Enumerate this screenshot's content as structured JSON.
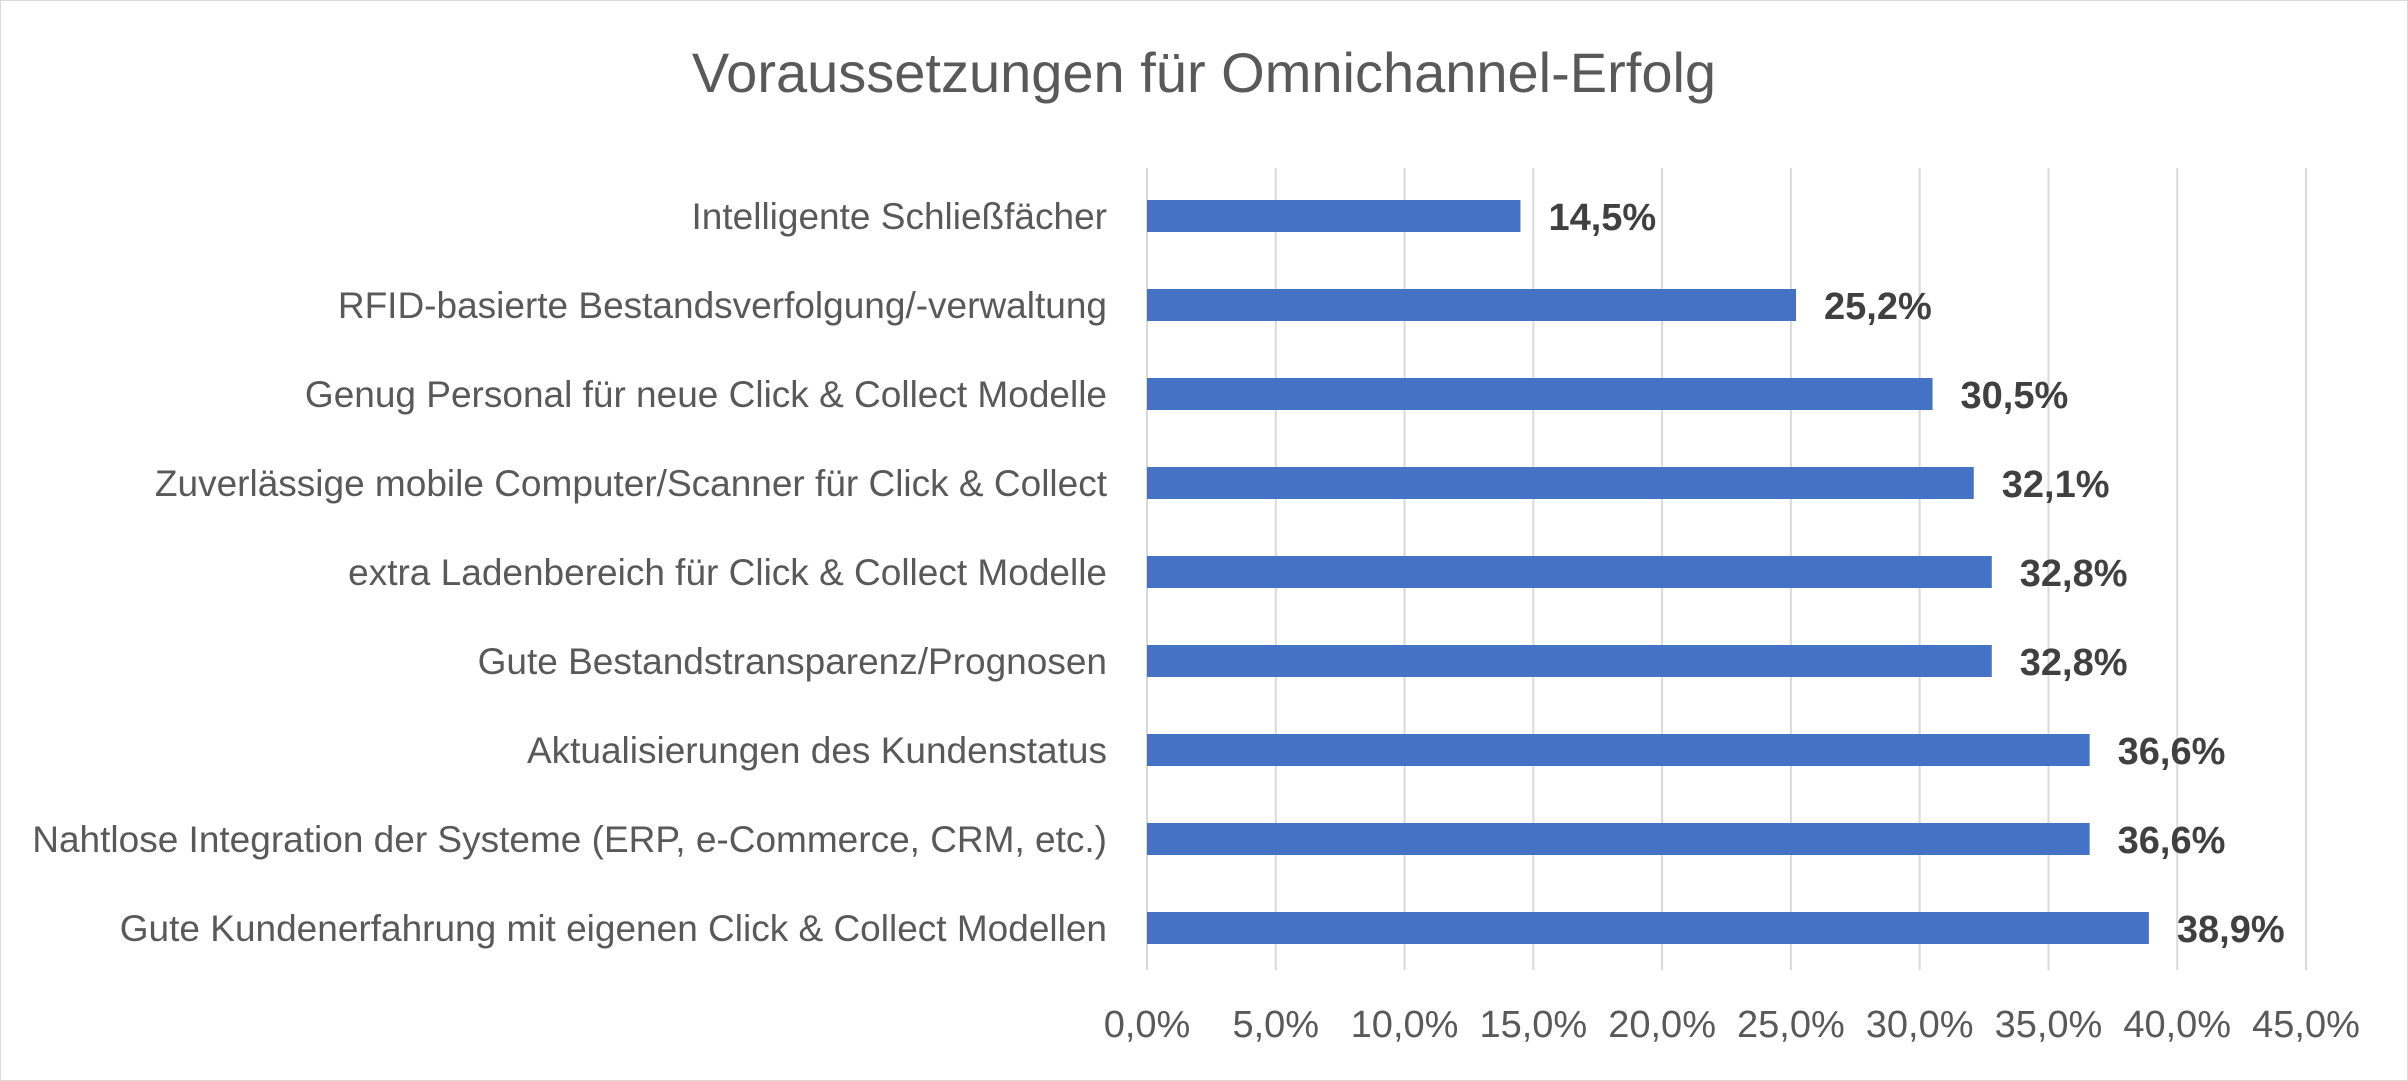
{
  "chart_data": {
    "type": "bar",
    "orientation": "horizontal",
    "title": "Voraussetzungen für Omnichannel-Erfolg",
    "categories": [
      "Intelligente Schließfächer",
      "RFID-basierte Bestandsverfolgung/-verwaltung",
      "Genug Personal für neue Click & Collect Modelle",
      "Zuverlässige mobile Computer/Scanner für Click & Collect",
      "extra Ladenbereich für Click & Collect Modelle",
      "Gute Bestandstransparenz/Prognosen",
      "Aktualisierungen des Kundenstatus",
      "Nahtlose Integration der Systeme (ERP, e-Commerce, CRM, etc.)",
      "Gute Kundenerfahrung mit eigenen Click & Collect Modellen"
    ],
    "values": [
      14.5,
      25.2,
      30.5,
      32.1,
      32.8,
      32.8,
      36.6,
      36.6,
      38.9
    ],
    "data_labels": [
      "14,5%",
      "25,2%",
      "30,5%",
      "32,1%",
      "32,8%",
      "32,8%",
      "36,6%",
      "36,6%",
      "38,9%"
    ],
    "xlim": [
      0,
      45
    ],
    "x_ticks": [
      "0,0%",
      "5,0%",
      "10,0%",
      "15,0%",
      "20,0%",
      "25,0%",
      "30,0%",
      "35,0%",
      "40,0%",
      "45,0%"
    ],
    "xlabel": "",
    "ylabel": "",
    "grid": "vertical",
    "legend": "none",
    "colors": {
      "bar": "#4472c4",
      "grid": "#d9d9d9",
      "text": "#595959",
      "data_label": "#404040"
    }
  }
}
